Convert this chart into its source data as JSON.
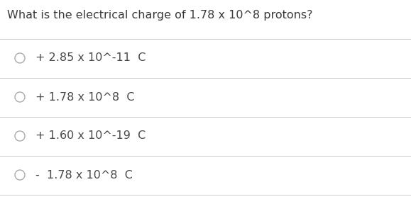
{
  "title": "What is the electrical charge of 1.78 x 10^8 protons?",
  "options": [
    "+ 2.85 x 10^-11  C",
    "+ 1.78 x 10^8  C",
    "+ 1.60 x 10^-19  C",
    "-  1.78 x 10^8  C"
  ],
  "bg_color": "#ffffff",
  "title_color": "#3a3a3a",
  "option_color": "#4a4a4a",
  "title_fontsize": 11.5,
  "option_fontsize": 11.5,
  "circle_color": "#aaaaaa",
  "line_color": "#cccccc",
  "fig_width": 5.79,
  "fig_height": 2.88,
  "dpi": 100
}
